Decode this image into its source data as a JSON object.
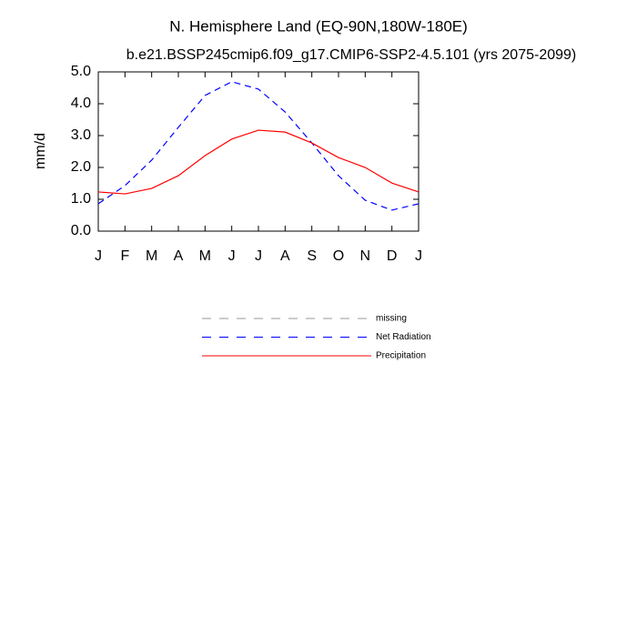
{
  "chart_data": {
    "type": "line",
    "title": "N. Hemisphere Land (EQ-90N,180W-180E)",
    "subtitle": "b.e21.BSSP245cmip6.f09_g17.CMIP6-SSP2-4.5.101 (yrs 2075-2099)",
    "y_label": "mm/d",
    "categories": [
      "J",
      "F",
      "M",
      "A",
      "M",
      "J",
      "J",
      "A",
      "S",
      "O",
      "N",
      "D",
      "J"
    ],
    "ylim": [
      0,
      5
    ],
    "yticks": [
      {
        "value": 0,
        "label": "0.0"
      },
      {
        "value": 1,
        "label": "1.0"
      },
      {
        "value": 2,
        "label": "2.0"
      },
      {
        "value": 3,
        "label": "3.0"
      },
      {
        "value": 4,
        "label": "4.0"
      },
      {
        "value": 5,
        "label": "5.0"
      }
    ],
    "series": [
      {
        "name": "missing",
        "color": "#999999",
        "dashed": true,
        "values": [
          null,
          null,
          null,
          null,
          null,
          null,
          null,
          null,
          null,
          null,
          null,
          null,
          null
        ]
      },
      {
        "name": "Net Radiation",
        "color": "#0000ff",
        "dashed": true,
        "values": [
          0.86,
          1.43,
          2.23,
          3.26,
          4.26,
          4.69,
          4.46,
          3.74,
          2.77,
          1.74,
          0.97,
          0.66,
          0.86
        ]
      },
      {
        "name": "Precipitation",
        "color": "#ff0000",
        "dashed": false,
        "values": [
          1.23,
          1.17,
          1.34,
          1.74,
          2.37,
          2.89,
          3.17,
          3.11,
          2.77,
          2.31,
          2.0,
          1.51,
          1.23
        ]
      }
    ]
  }
}
